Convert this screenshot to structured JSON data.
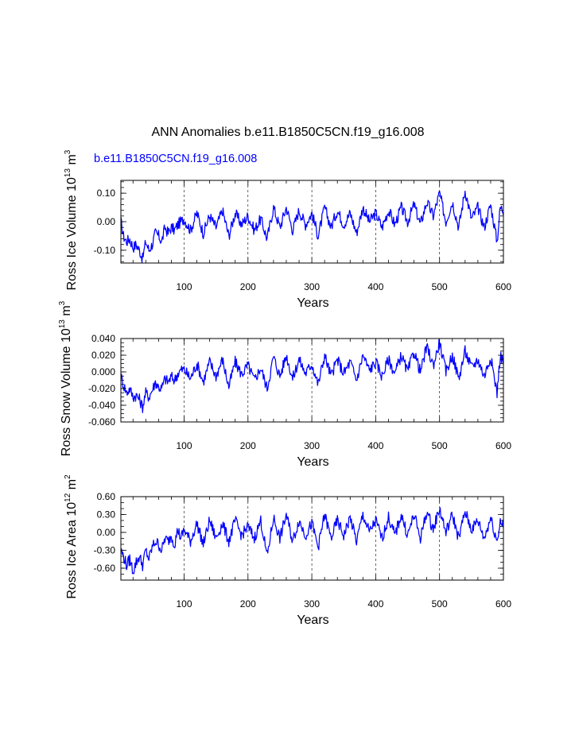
{
  "figure": {
    "title": "ANN Anomalies b.e11.B1850C5CN.f19_g16.008",
    "case_label": "b.e11.B1850C5CN.f19_g16.008"
  },
  "colors": {
    "series": "#0000ff",
    "axes": "#000000",
    "label": "#0000ff"
  },
  "chart_data": [
    {
      "type": "line",
      "name": "ross-ice-volume",
      "ylabel_parts": [
        "Ross Ice Volume 10",
        "13",
        " m",
        "3"
      ],
      "xlabel": "Years",
      "xlim": [
        1,
        600
      ],
      "ylim": [
        -0.145,
        0.145
      ],
      "yticks": [
        -0.1,
        0.0,
        0.1
      ],
      "ytick_labels": [
        "-0.10",
        "0.00",
        "0.10"
      ],
      "yminor_step": 0.02,
      "xticks": [
        100,
        200,
        300,
        400,
        500,
        600
      ],
      "xtick_labels": [
        "100",
        "200",
        "300",
        "400",
        "500",
        "600"
      ],
      "xgrid": [
        100,
        200,
        300,
        400,
        500
      ],
      "series": [
        {
          "name": "Ross Ice Volume",
          "x": [
            1,
            5,
            10,
            15,
            20,
            25,
            30,
            35,
            40,
            45,
            50,
            55,
            60,
            65,
            70,
            75,
            80,
            85,
            90,
            95,
            100,
            110,
            120,
            130,
            140,
            150,
            160,
            170,
            180,
            190,
            200,
            210,
            220,
            230,
            240,
            250,
            260,
            270,
            280,
            290,
            300,
            310,
            320,
            330,
            340,
            350,
            360,
            370,
            380,
            390,
            400,
            410,
            420,
            430,
            440,
            450,
            460,
            470,
            480,
            490,
            500,
            510,
            520,
            530,
            540,
            550,
            560,
            570,
            580,
            590,
            595,
            600
          ],
          "values": [
            0.0,
            -0.05,
            -0.07,
            -0.06,
            -0.09,
            -0.08,
            -0.1,
            -0.13,
            -0.07,
            -0.1,
            -0.08,
            -0.04,
            -0.05,
            -0.07,
            -0.02,
            -0.04,
            -0.02,
            -0.03,
            -0.01,
            0.0,
            0.01,
            -0.03,
            0.03,
            -0.04,
            0.02,
            -0.02,
            0.04,
            -0.05,
            0.03,
            -0.01,
            0.02,
            -0.03,
            0.01,
            -0.06,
            0.05,
            -0.02,
            0.05,
            -0.03,
            0.04,
            -0.01,
            0.03,
            -0.05,
            0.05,
            -0.02,
            0.04,
            -0.01,
            0.03,
            -0.04,
            0.05,
            0.0,
            0.03,
            -0.02,
            0.04,
            -0.01,
            0.05,
            0.0,
            0.06,
            -0.01,
            0.07,
            0.02,
            0.1,
            0.0,
            0.07,
            -0.02,
            0.11,
            0.01,
            0.05,
            -0.02,
            0.06,
            -0.07,
            0.05,
            0.04
          ]
        }
      ]
    },
    {
      "type": "line",
      "name": "ross-snow-volume",
      "ylabel_parts": [
        "Ross Snow Volume 10",
        "13",
        " m",
        "3"
      ],
      "xlabel": "Years",
      "xlim": [
        1,
        600
      ],
      "ylim": [
        -0.06,
        0.04
      ],
      "yticks": [
        -0.06,
        -0.04,
        -0.02,
        0.0,
        0.02,
        0.04
      ],
      "ytick_labels": [
        "-0.060",
        "-0.040",
        "-0.020",
        "0.000",
        "0.020",
        "0.040"
      ],
      "yminor_step": 0.005,
      "xticks": [
        100,
        200,
        300,
        400,
        500,
        600
      ],
      "xtick_labels": [
        "100",
        "200",
        "300",
        "400",
        "500",
        "600"
      ],
      "xgrid": [
        100,
        200,
        300,
        400,
        500
      ],
      "series": [
        {
          "name": "Ross Snow Volume",
          "x": [
            1,
            5,
            10,
            15,
            20,
            25,
            30,
            35,
            40,
            45,
            50,
            55,
            60,
            65,
            70,
            75,
            80,
            85,
            90,
            95,
            100,
            110,
            120,
            130,
            140,
            150,
            160,
            170,
            180,
            190,
            200,
            210,
            220,
            230,
            240,
            250,
            260,
            270,
            280,
            290,
            300,
            310,
            320,
            330,
            340,
            350,
            360,
            370,
            380,
            390,
            400,
            410,
            420,
            430,
            440,
            450,
            460,
            470,
            480,
            490,
            500,
            510,
            520,
            530,
            540,
            550,
            560,
            570,
            580,
            590,
            595,
            600
          ],
          "values": [
            -0.005,
            -0.015,
            -0.025,
            -0.02,
            -0.03,
            -0.028,
            -0.033,
            -0.042,
            -0.025,
            -0.03,
            -0.022,
            -0.012,
            -0.018,
            -0.02,
            -0.008,
            -0.012,
            -0.006,
            -0.01,
            -0.002,
            0.002,
            0.003,
            -0.008,
            0.01,
            -0.012,
            0.012,
            -0.005,
            0.015,
            -0.018,
            0.012,
            -0.003,
            0.008,
            -0.01,
            0.005,
            -0.02,
            0.018,
            -0.005,
            0.02,
            -0.008,
            0.015,
            -0.002,
            0.01,
            -0.015,
            0.02,
            -0.005,
            0.015,
            -0.002,
            0.012,
            -0.01,
            0.02,
            0.002,
            0.012,
            -0.005,
            0.015,
            -0.002,
            0.02,
            0.0,
            0.025,
            0.0,
            0.03,
            0.008,
            0.035,
            0.0,
            0.02,
            -0.008,
            0.025,
            0.005,
            0.015,
            -0.005,
            0.018,
            -0.025,
            0.02,
            0.012
          ]
        }
      ]
    },
    {
      "type": "line",
      "name": "ross-ice-area",
      "ylabel_parts": [
        "Ross Ice Area 10",
        "12",
        " m",
        "2"
      ],
      "xlabel": "Years",
      "xlim": [
        1,
        600
      ],
      "ylim": [
        -0.8,
        0.6
      ],
      "yticks": [
        -0.6,
        -0.3,
        0.0,
        0.3,
        0.6
      ],
      "ytick_labels": [
        "-0.60",
        "-0.30",
        "0.00",
        "0.30",
        "0.60"
      ],
      "yminor_step": 0.1,
      "xticks": [
        100,
        200,
        300,
        400,
        500,
        600
      ],
      "xtick_labels": [
        "100",
        "200",
        "300",
        "400",
        "500",
        "600"
      ],
      "xgrid": [
        100,
        200,
        300,
        400,
        500
      ],
      "series": [
        {
          "name": "Ross Ice Area",
          "x": [
            1,
            5,
            10,
            15,
            20,
            25,
            30,
            35,
            40,
            45,
            50,
            55,
            60,
            65,
            70,
            75,
            80,
            85,
            90,
            95,
            100,
            110,
            120,
            130,
            140,
            150,
            160,
            170,
            180,
            190,
            200,
            210,
            220,
            230,
            240,
            250,
            260,
            270,
            280,
            290,
            300,
            310,
            320,
            330,
            340,
            350,
            360,
            370,
            380,
            390,
            400,
            410,
            420,
            430,
            440,
            450,
            460,
            470,
            480,
            490,
            500,
            510,
            520,
            530,
            540,
            550,
            560,
            570,
            580,
            590,
            595,
            600
          ],
          "values": [
            -0.3,
            -0.4,
            -0.55,
            -0.45,
            -0.65,
            -0.5,
            -0.4,
            -0.55,
            -0.3,
            -0.45,
            -0.25,
            -0.15,
            -0.2,
            -0.3,
            -0.1,
            -0.15,
            -0.05,
            -0.2,
            0.05,
            -0.1,
            0.05,
            -0.15,
            0.15,
            -0.2,
            0.2,
            -0.1,
            0.15,
            -0.15,
            0.2,
            -0.05,
            0.1,
            -0.1,
            0.2,
            -0.4,
            0.25,
            -0.1,
            0.3,
            -0.15,
            0.2,
            -0.05,
            0.15,
            -0.25,
            0.3,
            -0.1,
            0.2,
            -0.05,
            0.25,
            -0.15,
            0.3,
            0.0,
            0.2,
            -0.1,
            0.25,
            -0.05,
            0.3,
            -0.05,
            0.3,
            -0.1,
            0.35,
            0.05,
            0.4,
            0.0,
            0.3,
            -0.1,
            0.35,
            0.05,
            0.2,
            -0.1,
            0.25,
            -0.15,
            0.2,
            0.1
          ]
        }
      ]
    }
  ]
}
